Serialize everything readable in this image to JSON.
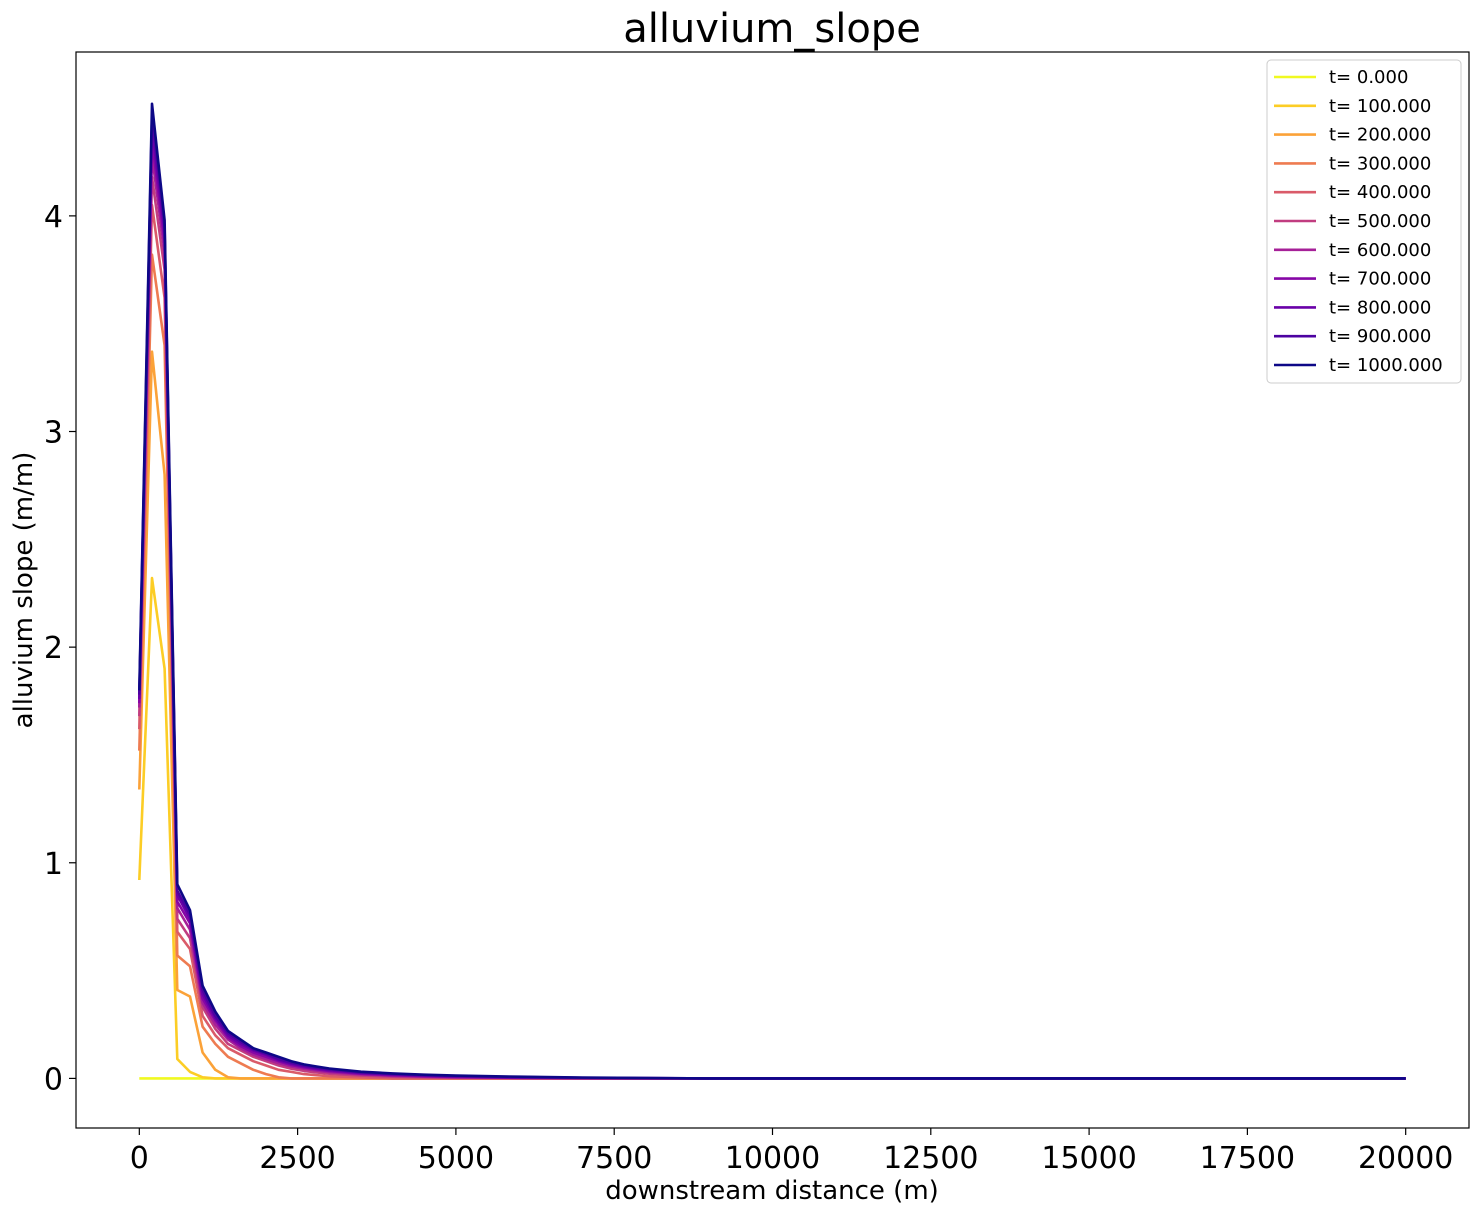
{
  "chart_data": {
    "type": "line",
    "title": "alluvium_slope",
    "xlabel": "downstream distance (m)",
    "ylabel": "alluvium slope (m/m)",
    "xlim": [
      -1000,
      21000
    ],
    "ylim": [
      -0.23,
      4.76
    ],
    "xticks": [
      0,
      2500,
      5000,
      7500,
      10000,
      12500,
      15000,
      17500,
      20000
    ],
    "xtick_labels": [
      "0",
      "2500",
      "5000",
      "7500",
      "10000",
      "12500",
      "15000",
      "17500",
      "20000"
    ],
    "yticks": [
      0,
      1,
      2,
      3,
      4
    ],
    "ytick_labels": [
      "0",
      "1",
      "2",
      "3",
      "4"
    ],
    "grid": false,
    "legend_position": "top-right",
    "x": [
      0,
      200,
      400,
      600,
      800,
      1000,
      1200,
      1400,
      1600,
      1800,
      2000,
      2200,
      2400,
      2600,
      2800,
      3000,
      3500,
      4000,
      4500,
      5000,
      6000,
      7000,
      8000,
      9000,
      10000,
      12000,
      14000,
      16000,
      18000,
      20000
    ],
    "series": [
      {
        "name": "t= 0.000",
        "color": "#f0f921",
        "values": [
          0,
          0,
          0,
          0,
          0,
          0,
          0,
          0,
          0,
          0,
          0,
          0,
          0,
          0,
          0,
          0,
          0,
          0,
          0,
          0,
          0,
          0,
          0,
          0,
          0,
          0,
          0,
          0,
          0,
          0
        ]
      },
      {
        "name": "t= 100.000",
        "color": "#fccd25",
        "values": [
          0.92,
          2.32,
          1.9,
          0.09,
          0.03,
          0.005,
          0,
          0,
          0,
          0,
          0,
          0,
          0,
          0,
          0,
          0,
          0,
          0,
          0,
          0,
          0,
          0,
          0,
          0,
          0,
          0,
          0,
          0,
          0,
          0
        ]
      },
      {
        "name": "t= 200.000",
        "color": "#fba238",
        "values": [
          1.34,
          3.37,
          2.8,
          0.41,
          0.38,
          0.12,
          0.04,
          0.005,
          0,
          0,
          0,
          0,
          0,
          0,
          0,
          0,
          0,
          0,
          0,
          0,
          0,
          0,
          0,
          0,
          0,
          0,
          0,
          0,
          0,
          0
        ]
      },
      {
        "name": "t= 300.000",
        "color": "#ee7b51",
        "values": [
          1.52,
          3.82,
          3.4,
          0.57,
          0.52,
          0.24,
          0.16,
          0.1,
          0.07,
          0.04,
          0.02,
          0.005,
          0,
          0,
          0,
          0,
          0,
          0,
          0,
          0,
          0,
          0,
          0,
          0,
          0,
          0,
          0,
          0,
          0,
          0
        ]
      },
      {
        "name": "t= 400.000",
        "color": "#da5b69",
        "values": [
          1.62,
          4.05,
          3.62,
          0.68,
          0.6,
          0.29,
          0.2,
          0.14,
          0.11,
          0.08,
          0.06,
          0.04,
          0.03,
          0.02,
          0.015,
          0.01,
          0.005,
          0,
          0,
          0,
          0,
          0,
          0,
          0,
          0,
          0,
          0,
          0,
          0,
          0
        ]
      },
      {
        "name": "t= 500.000",
        "color": "#c13d80",
        "values": [
          1.68,
          4.18,
          3.75,
          0.74,
          0.65,
          0.33,
          0.23,
          0.16,
          0.13,
          0.1,
          0.08,
          0.06,
          0.045,
          0.035,
          0.028,
          0.022,
          0.013,
          0.008,
          0.005,
          0.003,
          0.001,
          0,
          0,
          0,
          0,
          0,
          0,
          0,
          0,
          0
        ]
      },
      {
        "name": "t= 600.000",
        "color": "#a62098",
        "values": [
          1.72,
          4.28,
          3.83,
          0.79,
          0.69,
          0.35,
          0.25,
          0.18,
          0.14,
          0.11,
          0.09,
          0.07,
          0.055,
          0.045,
          0.036,
          0.029,
          0.018,
          0.012,
          0.008,
          0.005,
          0.002,
          0.001,
          0,
          0,
          0,
          0,
          0,
          0,
          0,
          0
        ]
      },
      {
        "name": "t= 700.000",
        "color": "#8606a6",
        "values": [
          1.74,
          4.35,
          3.88,
          0.82,
          0.72,
          0.37,
          0.27,
          0.19,
          0.15,
          0.12,
          0.1,
          0.08,
          0.062,
          0.051,
          0.042,
          0.034,
          0.022,
          0.015,
          0.01,
          0.007,
          0.003,
          0.001,
          0.0005,
          0,
          0,
          0,
          0,
          0,
          0,
          0
        ]
      },
      {
        "name": "t= 800.000",
        "color": "#6a00a8",
        "values": [
          1.76,
          4.41,
          3.92,
          0.85,
          0.74,
          0.39,
          0.28,
          0.2,
          0.16,
          0.13,
          0.11,
          0.085,
          0.068,
          0.056,
          0.046,
          0.038,
          0.025,
          0.018,
          0.013,
          0.009,
          0.004,
          0.002,
          0.001,
          0,
          0,
          0,
          0,
          0,
          0,
          0
        ]
      },
      {
        "name": "t= 900.000",
        "color": "#4c02a1",
        "values": [
          1.78,
          4.47,
          3.95,
          0.87,
          0.76,
          0.41,
          0.29,
          0.21,
          0.17,
          0.135,
          0.115,
          0.09,
          0.073,
          0.06,
          0.05,
          0.042,
          0.028,
          0.02,
          0.015,
          0.011,
          0.006,
          0.003,
          0.0015,
          0,
          0,
          0,
          0,
          0,
          0,
          0
        ]
      },
      {
        "name": "t= 1000.000",
        "color": "#0d0887",
        "values": [
          1.8,
          4.52,
          3.98,
          0.9,
          0.78,
          0.43,
          0.31,
          0.22,
          0.18,
          0.14,
          0.12,
          0.1,
          0.08,
          0.065,
          0.055,
          0.046,
          0.031,
          0.023,
          0.017,
          0.013,
          0.008,
          0.004,
          0.002,
          0,
          0,
          0,
          0,
          0,
          0,
          0
        ]
      }
    ]
  }
}
